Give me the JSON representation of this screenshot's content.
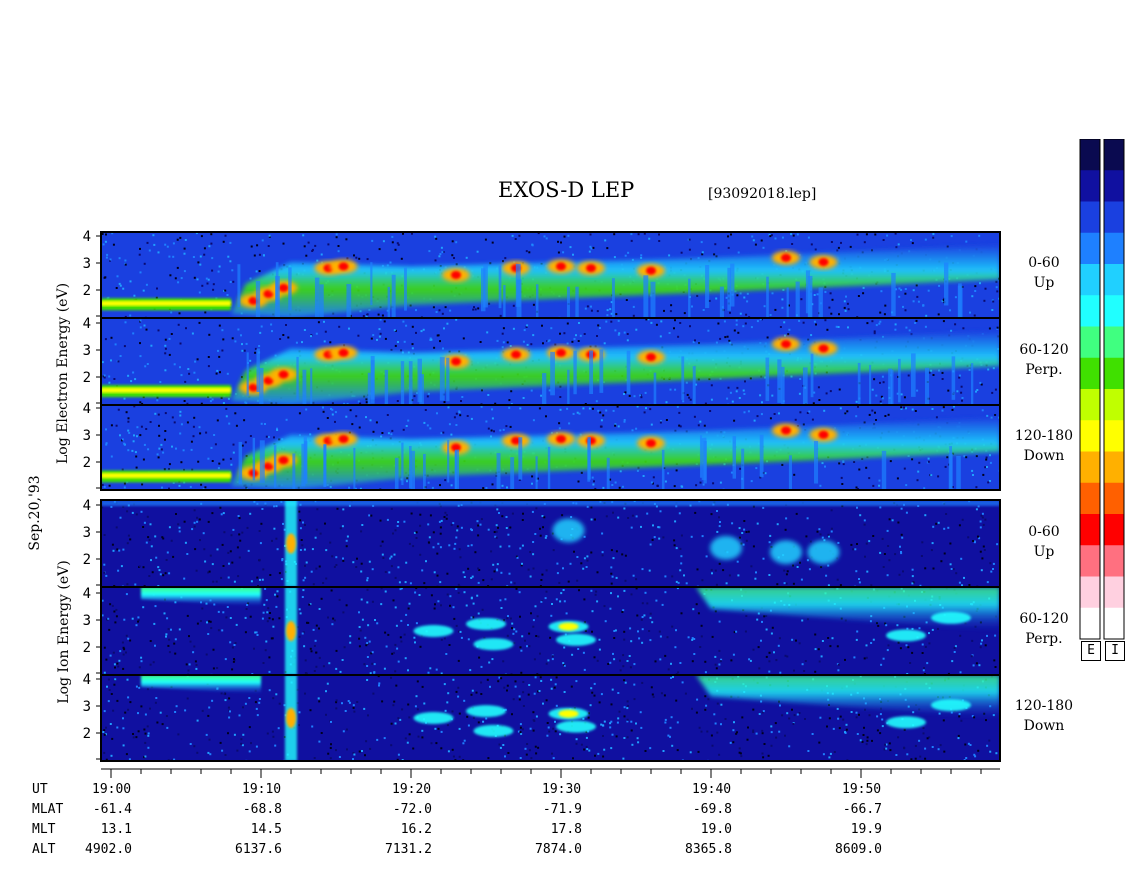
{
  "header": {
    "title": "EXOS-D LEP",
    "filename": "[93092018.lep]"
  },
  "side_labels": {
    "date": "Sep.20,'93",
    "electron": "Log Electron Energy (eV)",
    "ion": "Log Ion Energy (eV)"
  },
  "colorbar": {
    "electron_label": "E",
    "ion_label": "I",
    "colors": [
      "#0a0a50",
      "#1010a0",
      "#1a40e0",
      "#1e80ff",
      "#20d0ff",
      "#20ffff",
      "#40ff80",
      "#40e000",
      "#c0ff00",
      "#ffff00",
      "#ffb000",
      "#ff6000",
      "#ff0000",
      "#ff7080",
      "#ffd0e0",
      "#ffffff"
    ]
  },
  "panels": [
    {
      "species": "electron",
      "pitch": "0-60",
      "dir": "Up"
    },
    {
      "species": "electron",
      "pitch": "60-120",
      "dir": "Perp."
    },
    {
      "species": "electron",
      "pitch": "120-180",
      "dir": "Down"
    },
    {
      "species": "ion",
      "pitch": "0-60",
      "dir": "Up"
    },
    {
      "species": "ion",
      "pitch": "60-120",
      "dir": "Perp."
    },
    {
      "species": "ion",
      "pitch": "120-180",
      "dir": "Down"
    }
  ],
  "chart_data": {
    "type": "heatmap",
    "title": "EXOS-D LEP",
    "ylabel": "Log Energy (eV)",
    "yticks": [
      2,
      3,
      4
    ],
    "xticks": [
      "19:00",
      "19:10",
      "19:20",
      "19:30",
      "19:40",
      "19:50"
    ]
  },
  "ephemeris": {
    "rows": [
      {
        "name": "UT",
        "values": [
          "19:00",
          "19:10",
          "19:20",
          "19:30",
          "19:40",
          "19:50"
        ]
      },
      {
        "name": "MLAT",
        "values": [
          "-61.4",
          "-68.8",
          "-72.0",
          "-71.9",
          "-69.8",
          "-66.7"
        ]
      },
      {
        "name": "MLT",
        "values": [
          "13.1",
          "14.5",
          "16.2",
          "17.8",
          "19.0",
          "19.9"
        ]
      },
      {
        "name": "ALT",
        "values": [
          "4902.0",
          "6137.6",
          "7131.2",
          "7874.0",
          "8365.8",
          "8609.0"
        ]
      }
    ]
  }
}
